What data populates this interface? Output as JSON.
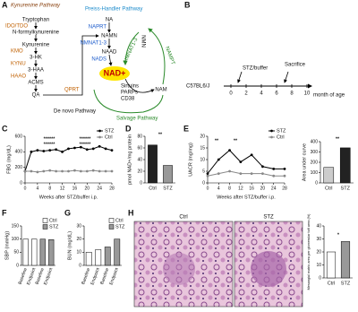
{
  "panel_labels": [
    "A",
    "B",
    "C",
    "D",
    "E",
    "F",
    "G",
    "H"
  ],
  "pathway": {
    "kynurenine_title": "Kynurenine Pathway",
    "denovo_steps": [
      "Tryptophan",
      "N-formylkynurenine",
      "Kynurenine",
      "3-HK",
      "3-HAA",
      "ACMS",
      "QA"
    ],
    "denovo_enzymes": [
      "IDO/TDO",
      "KMO",
      "KYNU",
      "HAAO",
      "QPRT"
    ],
    "denovo_title": "De novo Pathway",
    "preiss_title": "Preiss-Handler Pathway",
    "preiss_steps": [
      "NA",
      "NAMN",
      "NAAD"
    ],
    "preiss_enzymes": [
      "NAPRT",
      "NMNAT1-3",
      "NADS"
    ],
    "nad": "NAD+",
    "consumers": [
      "Sirtuins",
      "PARPs",
      "CD38"
    ],
    "salvage_steps": [
      "NAM",
      "NMN"
    ],
    "salvage_enzymes": [
      "NAMPT",
      "NMNAT1-3"
    ],
    "salvage_title": "Salvage Pathway"
  },
  "timeline": {
    "strain": "C57BL6/J",
    "events": [
      "STZ/buffer",
      "Sacrifice"
    ],
    "axis_label": "month of age",
    "ticks": [
      0,
      2,
      4,
      6,
      8,
      10
    ]
  },
  "histology": {
    "labels": [
      "Ctrl",
      "STZ"
    ]
  },
  "chart_data": [
    {
      "type": "line",
      "ylabel": "FBG (mg/dL)",
      "xlabel": "Weeks after STZ/buffer i.p.",
      "x": [
        0,
        2,
        4,
        6,
        8,
        10,
        12,
        14,
        16,
        18,
        20,
        22,
        24,
        26,
        28
      ],
      "xlim": [
        0,
        28
      ],
      "xticks": [
        0,
        4,
        8,
        12,
        16,
        20,
        24,
        28
      ],
      "ylim": [
        0,
        600
      ],
      "yticks": [
        0,
        200,
        400,
        600
      ],
      "series": [
        {
          "name": "STZ",
          "color": "#000000",
          "values": [
            150,
            400,
            420,
            410,
            420,
            430,
            400,
            440,
            450,
            460,
            430,
            440,
            470,
            440,
            420
          ]
        },
        {
          "name": "Ctrl",
          "color": "#888888",
          "values": [
            150,
            150,
            140,
            150,
            160,
            150,
            150,
            150,
            160,
            150,
            150,
            160,
            150,
            150,
            150
          ]
        }
      ],
      "annotations": [
        "******",
        "******",
        "******",
        "******"
      ]
    },
    {
      "type": "bar",
      "ylabel": "pmol NAD+/mg protein",
      "categories": [
        "Ctrl",
        "STZ"
      ],
      "values": [
        65,
        30
      ],
      "colors": [
        "#222222",
        "#999999"
      ],
      "ylim": [
        0,
        80
      ],
      "yticks": [
        0,
        20,
        40,
        60,
        80
      ],
      "annotations": [
        "**"
      ]
    },
    {
      "type": "line",
      "ylabel": "UACR (mg/mg)",
      "xlabel": "Weeks after STZ/buffer i.p.",
      "x": [
        0,
        4,
        8,
        12,
        16,
        20,
        24,
        28
      ],
      "xlim": [
        0,
        28
      ],
      "xticks": [
        0,
        4,
        8,
        12,
        16,
        20,
        24,
        28
      ],
      "ylim": [
        0,
        20
      ],
      "yticks": [
        0,
        5,
        10,
        15,
        20
      ],
      "series": [
        {
          "name": "STZ",
          "color": "#000000",
          "values": [
            4,
            10,
            14,
            9,
            12,
            7,
            6,
            6
          ]
        },
        {
          "name": "Ctrl",
          "color": "#888888",
          "values": [
            3,
            4,
            5,
            4,
            4,
            4,
            3,
            3
          ]
        }
      ],
      "annotations": [
        "**",
        "**"
      ]
    },
    {
      "type": "bar",
      "ylabel": "Area under curve",
      "categories": [
        "Ctrl",
        "STZ"
      ],
      "values": [
        150,
        340
      ],
      "colors": [
        "#cccccc",
        "#222222"
      ],
      "ylim": [
        0,
        400
      ],
      "yticks": [
        0,
        100,
        200,
        300,
        400
      ],
      "annotations": [
        "**"
      ]
    },
    {
      "type": "bar",
      "ylabel": "SBP (mmHg)",
      "categories": [
        "Baseline",
        "Endpoint",
        "Baseline",
        "Endpoint"
      ],
      "ylim": [
        0,
        150
      ],
      "yticks": [
        0,
        50,
        100,
        150
      ],
      "series": [
        {
          "name": "Ctrl",
          "color": "#ffffff",
          "values": [
            100,
            100,
            null,
            null
          ]
        },
        {
          "name": "STZ",
          "color": "#999999",
          "values": [
            null,
            null,
            100,
            98
          ]
        }
      ]
    },
    {
      "type": "bar",
      "ylabel": "BUN (mg/dL)",
      "categories": [
        "Baseline",
        "Endpoint",
        "Baseline",
        "Endpoint"
      ],
      "ylim": [
        0,
        30
      ],
      "yticks": [
        0,
        10,
        20,
        30
      ],
      "series": [
        {
          "name": "Ctrl",
          "color": "#ffffff",
          "values": [
            10,
            12,
            null,
            null
          ]
        },
        {
          "name": "STZ",
          "color": "#999999",
          "values": [
            null,
            null,
            14,
            20
          ]
        }
      ]
    },
    {
      "type": "bar",
      "ylabel": "Mesangial matrix area per glomerular tuft area (%)",
      "categories": [
        "Ctrl",
        "STZ"
      ],
      "values": [
        20,
        28
      ],
      "colors": [
        "#ffffff",
        "#999999"
      ],
      "ylim": [
        0,
        40
      ],
      "yticks": [
        0,
        10,
        20,
        30,
        40
      ],
      "annotations": [
        "*"
      ]
    }
  ]
}
